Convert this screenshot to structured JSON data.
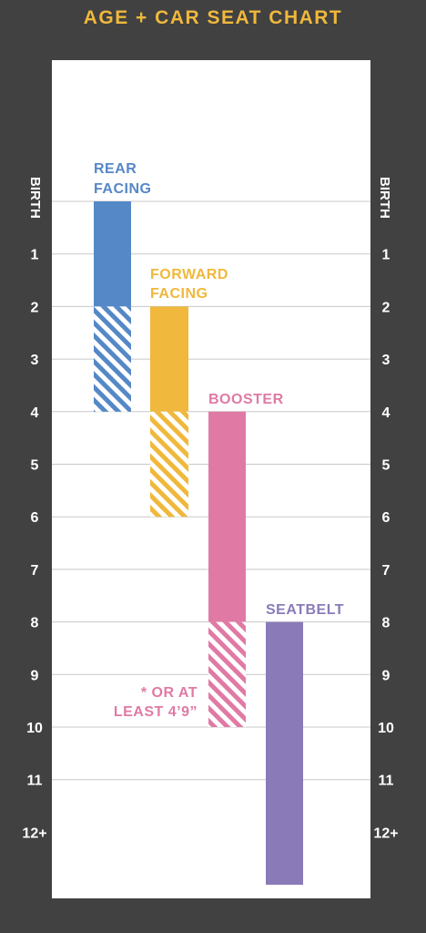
{
  "title": "AGE + CAR SEAT CHART",
  "colors": {
    "background": "#414141",
    "title": "#f0b83c",
    "panel": "#ffffff",
    "gridline": "#c8c8c8",
    "axis_text": "#ffffff"
  },
  "chart_data": {
    "type": "bar",
    "title": "AGE + CAR SEAT CHART",
    "y_ticks": [
      "BIRTH",
      "1",
      "2",
      "3",
      "4",
      "5",
      "6",
      "7",
      "8",
      "9",
      "10",
      "11",
      "12+"
    ],
    "y_unit": "age (years)",
    "orientation": "floating vertical ranges, age increasing downward",
    "grid": true,
    "series": [
      {
        "name": "REAR FACING",
        "label_lines": [
          "REAR",
          "FACING"
        ],
        "color": "#5588c6",
        "solid": [
          0,
          2
        ],
        "hatched": [
          2,
          4
        ]
      },
      {
        "name": "FORWARD FACING",
        "label_lines": [
          "FORWARD",
          "FACING"
        ],
        "color": "#f0b83c",
        "solid": [
          2,
          4
        ],
        "hatched": [
          4,
          6
        ]
      },
      {
        "name": "BOOSTER",
        "label_lines": [
          "BOOSTER"
        ],
        "color": "#e07aa5",
        "solid": [
          4,
          8
        ],
        "hatched": [
          8,
          10
        ]
      },
      {
        "name": "SEATBELT",
        "label_lines": [
          "SEATBELT"
        ],
        "color": "#8a7bb8",
        "solid": [
          8,
          13
        ],
        "hatched": null
      }
    ],
    "annotations": [
      {
        "lines": [
          "* OR AT",
          "LEAST 4’9”"
        ],
        "color": "#e07aa5",
        "series": "BOOSTER"
      }
    ]
  }
}
